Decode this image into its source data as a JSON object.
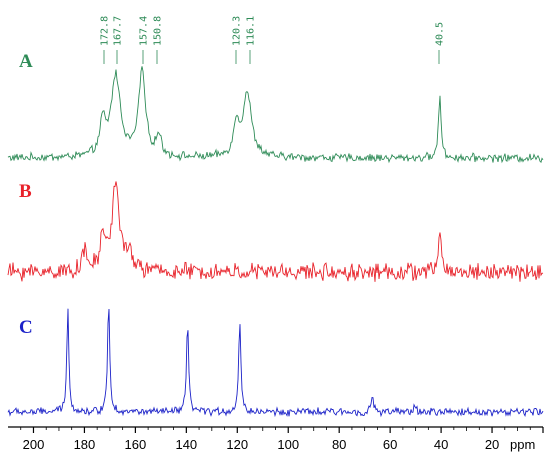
{
  "chart_data": {
    "type": "line",
    "title": "",
    "xlabel": "ppm",
    "ylabel": "",
    "xlim": [
      210,
      0
    ],
    "x_reversed": true,
    "grid": false,
    "legend": "labels at left of each trace",
    "xticks": [
      200,
      180,
      160,
      140,
      120,
      100,
      80,
      60,
      40,
      20
    ],
    "series": [
      {
        "name": "A",
        "color": "#2e8b57",
        "noise": 0.035,
        "peaks": [
          {
            "ppm": 172.8,
            "height": 0.35,
            "width": 1.3
          },
          {
            "ppm": 167.7,
            "height": 0.88,
            "width": 2.2
          },
          {
            "ppm": 157.4,
            "height": 0.93,
            "width": 1.6
          },
          {
            "ppm": 150.8,
            "height": 0.22,
            "width": 1.2
          },
          {
            "ppm": 120.3,
            "height": 0.35,
            "width": 1.3
          },
          {
            "ppm": 116.1,
            "height": 0.7,
            "width": 2.0
          },
          {
            "ppm": 40.5,
            "height": 0.7,
            "width": 0.6
          }
        ],
        "peak_labels": [
          "172.8",
          "167.7",
          "157.4",
          "150.8",
          "120.3",
          "116.1",
          "40.5"
        ]
      },
      {
        "name": "B",
        "color": "#e8222a",
        "noise": 0.075,
        "peaks": [
          {
            "ppm": 180.0,
            "height": 0.2,
            "width": 1.2
          },
          {
            "ppm": 172.8,
            "height": 0.35,
            "width": 1.2
          },
          {
            "ppm": 167.7,
            "height": 0.95,
            "width": 1.8
          },
          {
            "ppm": 162.0,
            "height": 0.15,
            "width": 1.5
          },
          {
            "ppm": 40.5,
            "height": 0.5,
            "width": 0.6
          }
        ]
      },
      {
        "name": "C",
        "color": "#1c22c8",
        "noise": 0.03,
        "peaks": [
          {
            "ppm": 186.5,
            "height": 0.98,
            "width": 0.5
          },
          {
            "ppm": 170.5,
            "height": 1.1,
            "width": 0.5
          },
          {
            "ppm": 139.5,
            "height": 0.85,
            "width": 0.5
          },
          {
            "ppm": 119.0,
            "height": 0.9,
            "width": 0.5
          },
          {
            "ppm": 67.0,
            "height": 0.16,
            "width": 0.5
          },
          {
            "ppm": 50.5,
            "height": 0.07,
            "width": 0.5
          }
        ]
      }
    ]
  }
}
